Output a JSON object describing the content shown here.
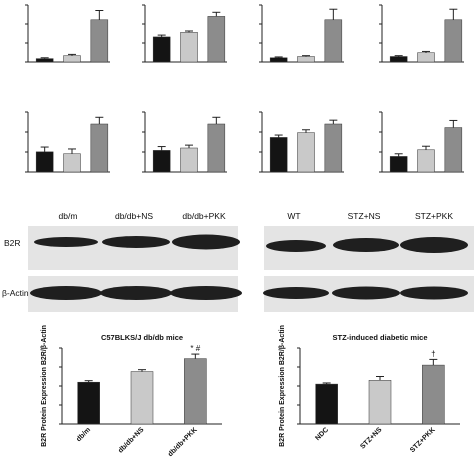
{
  "colors": {
    "black": "#141414",
    "light": "#c9c9c9",
    "dark": "#8c8c8c",
    "blot_bg": "#e4e4e4",
    "band": "#1f1f1f"
  },
  "western": {
    "left": {
      "lanes": [
        "db/m",
        "db/db+NS",
        "db/db+PKK"
      ],
      "b2r_label": "B2R",
      "actin_label": "β-Actin"
    },
    "right": {
      "lanes": [
        "WT",
        "STZ+NS",
        "STZ+PKK"
      ]
    }
  },
  "chart_data": [
    {
      "type": "bar",
      "categories": [
        "",
        "",
        ""
      ],
      "values": [
        0.08,
        0.15,
        1.0
      ],
      "errors": [
        0.02,
        0.03,
        0.22
      ],
      "ylim": [
        0,
        1.35
      ]
    },
    {
      "type": "bar",
      "categories": [
        "",
        "",
        ""
      ],
      "values": [
        0.55,
        0.65,
        1.0
      ],
      "errors": [
        0.04,
        0.03,
        0.09
      ],
      "ylim": [
        0,
        1.25
      ]
    },
    {
      "type": "bar",
      "categories": [
        "",
        "",
        ""
      ],
      "values": [
        0.1,
        0.13,
        1.0
      ],
      "errors": [
        0.02,
        0.02,
        0.25
      ],
      "ylim": [
        0,
        1.35
      ]
    },
    {
      "type": "bar",
      "categories": [
        "",
        "",
        ""
      ],
      "values": [
        0.13,
        0.22,
        1.0
      ],
      "errors": [
        0.02,
        0.03,
        0.25
      ],
      "ylim": [
        0,
        1.35
      ]
    },
    {
      "type": "bar",
      "categories": [
        "",
        "",
        ""
      ],
      "values": [
        0.42,
        0.38,
        1.0
      ],
      "errors": [
        0.1,
        0.1,
        0.14
      ],
      "ylim": [
        0,
        1.25
      ]
    },
    {
      "type": "bar",
      "categories": [
        "",
        "",
        ""
      ],
      "values": [
        0.45,
        0.5,
        1.0
      ],
      "errors": [
        0.08,
        0.06,
        0.14
      ],
      "ylim": [
        0,
        1.25
      ]
    },
    {
      "type": "bar",
      "categories": [
        "",
        "",
        ""
      ],
      "values": [
        0.72,
        0.82,
        1.0
      ],
      "errors": [
        0.05,
        0.06,
        0.08
      ],
      "ylim": [
        0,
        1.25
      ]
    },
    {
      "type": "bar",
      "categories": [
        "",
        "",
        ""
      ],
      "values": [
        0.35,
        0.5,
        1.0
      ],
      "errors": [
        0.06,
        0.08,
        0.16
      ],
      "ylim": [
        0,
        1.35
      ]
    },
    {
      "type": "bar",
      "title": "C57BLKS/J  db/db mice",
      "ylabel": "B2R Protein Expression B2R/β-Actin",
      "categories": [
        "db/m",
        "db/db+NS",
        "db/db+PKK"
      ],
      "values": [
        1.1,
        1.38,
        1.72
      ],
      "errors": [
        0.04,
        0.05,
        0.12
      ],
      "annotations": [
        "",
        "",
        "* #"
      ],
      "ylim": [
        0,
        2.0
      ]
    },
    {
      "type": "bar",
      "title": "STZ-induced diabetic mice",
      "ylabel": "B2R Protein Expression B2R/β-Actin",
      "categories": [
        "NDC",
        "STZ+NS",
        "STZ+PKK"
      ],
      "values": [
        1.05,
        1.15,
        1.55
      ],
      "errors": [
        0.03,
        0.1,
        0.15
      ],
      "annotations": [
        "",
        "",
        "†"
      ],
      "ylim": [
        0,
        2.0
      ]
    }
  ]
}
